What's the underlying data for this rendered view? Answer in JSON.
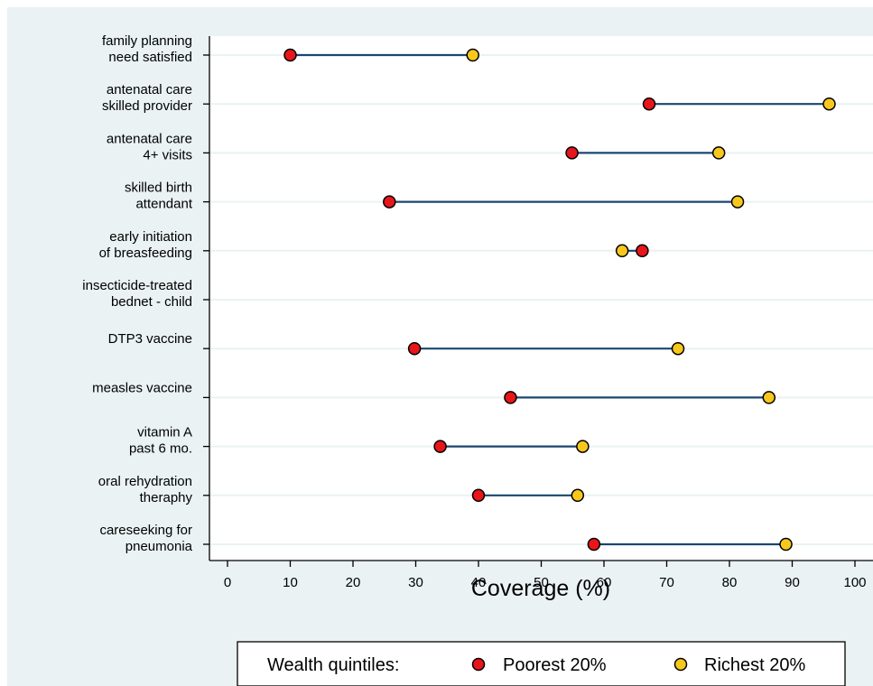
{
  "chart_data": {
    "type": "dumbbell",
    "xlabel": "Coverage (%)",
    "xlim": [
      0,
      100
    ],
    "xticks": [
      0,
      10,
      20,
      30,
      40,
      50,
      60,
      70,
      80,
      90,
      100
    ],
    "grid": "horizontal",
    "categories": [
      [
        "family planning",
        "need satisfied"
      ],
      [
        "antenatal care",
        "skilled provider"
      ],
      [
        "antenatal care",
        "4+ visits"
      ],
      [
        "skilled birth",
        "attendant"
      ],
      [
        "early initiation",
        "of breasfeeding"
      ],
      [
        "insecticide-treated",
        "bednet - child"
      ],
      [
        "DTP3 vaccine"
      ],
      [
        "measles vaccine"
      ],
      [
        "vitamin A",
        "past 6 mo."
      ],
      [
        "oral rehydration",
        "theraphy"
      ],
      [
        "careseeking for",
        "pneumonia"
      ]
    ],
    "series": [
      {
        "name": "Poorest 20%",
        "color": "#e8161b",
        "values": [
          10,
          67.2,
          54.9,
          25.8,
          66.1,
          null,
          29.8,
          45.1,
          33.9,
          40,
          58.4
        ]
      },
      {
        "name": "Richest 20%",
        "color": "#f7c81b",
        "values": [
          39.1,
          95.9,
          78.3,
          81.3,
          62.9,
          null,
          71.8,
          86.3,
          56.6,
          55.8,
          89
        ]
      }
    ],
    "legend": {
      "title": "Wealth quintiles:",
      "position": "bottom"
    }
  }
}
